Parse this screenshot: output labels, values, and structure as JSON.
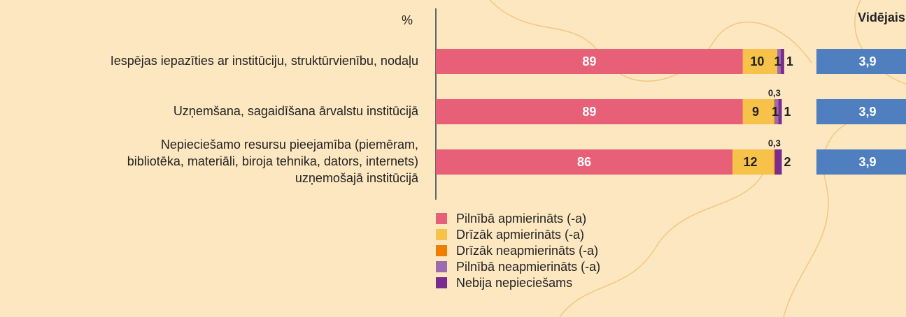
{
  "chart_data": {
    "type": "stacked-bar-horizontal",
    "unit_label": "%",
    "categories": [
      "Iespējas iepazīties ar institūciju, struktūrvienību, nodaļu",
      "Uzņemšana, sagaidīšana ārvalstu institūcijā",
      [
        "Nepieciešamo resursu pieejamība (piemēram,",
        "bibliotēka, materiāli, biroja tehnika, dators, internets)",
        "uzņemošajā institūcijā"
      ]
    ],
    "series": [
      {
        "name": "Pilnībā apmierināts (-a)",
        "color": "#e85f78",
        "values": [
          89,
          89,
          86
        ]
      },
      {
        "name": "Drīzāk apmierināts (-a)",
        "color": "#f7c24a",
        "values": [
          10,
          9,
          12
        ]
      },
      {
        "name": "Drīzāk neapmierināts (-a)",
        "color": "#ef7d00",
        "values": [
          null,
          0.3,
          0.3
        ],
        "value_labels": [
          null,
          "0,3",
          "0,3"
        ]
      },
      {
        "name": "Pilnībā neapmierināts (-a)",
        "color": "#9d6bb0",
        "values": [
          1,
          1,
          null
        ]
      },
      {
        "name": "Nebija nepieciešams",
        "color": "#7b2c8f",
        "values": [
          1,
          1,
          2
        ]
      }
    ],
    "xlim": [
      0,
      100
    ],
    "average": {
      "title": "Vidējais",
      "color": "#4f7fbf",
      "values": [
        3.9,
        3.9,
        3.9
      ],
      "value_labels": [
        "3,9",
        "3,9",
        "3,9"
      ]
    }
  }
}
